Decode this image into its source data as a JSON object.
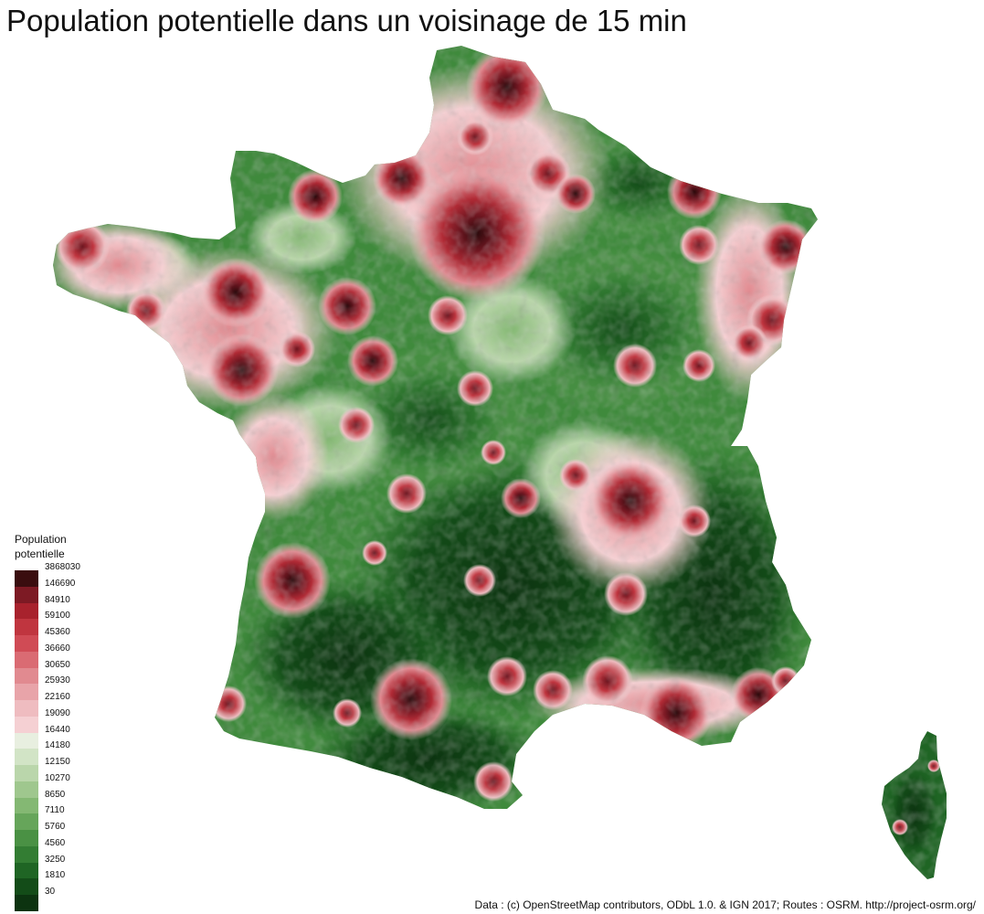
{
  "title": "Population potentielle dans un voisinage de 15 min",
  "legend": {
    "title_line1": "Population",
    "title_line2": "potentielle",
    "breaks": [
      "3868030",
      "146690",
      "84910",
      "59100",
      "45360",
      "36660",
      "30650",
      "25930",
      "22160",
      "19090",
      "16440",
      "14180",
      "12150",
      "10270",
      "8650",
      "7110",
      "5760",
      "4560",
      "3250",
      "1810",
      "30"
    ],
    "colors": [
      "#3a0d0f",
      "#7d1a24",
      "#a8222d",
      "#c0353f",
      "#d04b55",
      "#da6b73",
      "#e18a90",
      "#e8a4a9",
      "#efbcc0",
      "#f5d0d3",
      "#e8efe0",
      "#d2e4c6",
      "#bad6ab",
      "#9fc78e",
      "#84b873",
      "#66a55a",
      "#4a9144",
      "#337d33",
      "#1f6524",
      "#134c18",
      "#0c3310"
    ]
  },
  "source": "Data : (c) OpenStreetMap contributors, ODbL 1.0. & IGN 2017; Routes : OSRM. http://project-osrm.org/"
}
